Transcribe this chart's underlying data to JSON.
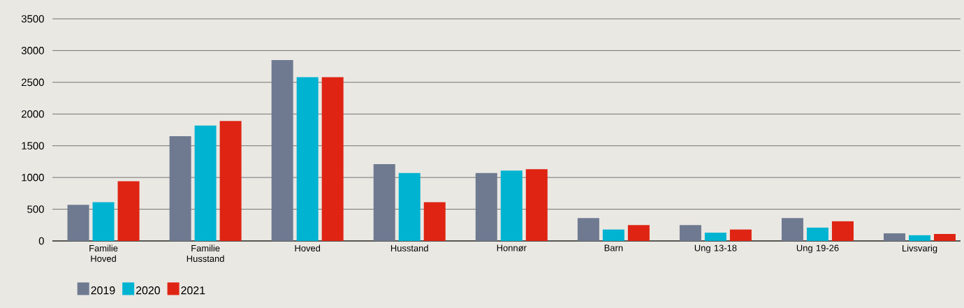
{
  "chart_data": {
    "type": "bar",
    "categories": [
      "Familie Hoved",
      "Familie Husstand",
      "Hoved",
      "Husstand",
      "Honnør",
      "Barn",
      "Ung 13-18",
      "Ung 19-26",
      "Livsvarig"
    ],
    "series": [
      {
        "name": "2019",
        "color": "#6f7a91",
        "values": [
          570,
          1650,
          2850,
          1210,
          1070,
          360,
          250,
          360,
          120
        ]
      },
      {
        "name": "2020",
        "color": "#00b3d1",
        "values": [
          610,
          1820,
          2580,
          1070,
          1110,
          180,
          130,
          210,
          90
        ]
      },
      {
        "name": "2021",
        "color": "#df2413",
        "values": [
          940,
          1890,
          2580,
          610,
          1130,
          250,
          180,
          310,
          110
        ]
      }
    ],
    "ylim": [
      0,
      3500
    ],
    "yticks": [
      0,
      500,
      1000,
      1500,
      2000,
      2500,
      3000,
      3500
    ],
    "grid": "y",
    "legend": "bottom left"
  }
}
